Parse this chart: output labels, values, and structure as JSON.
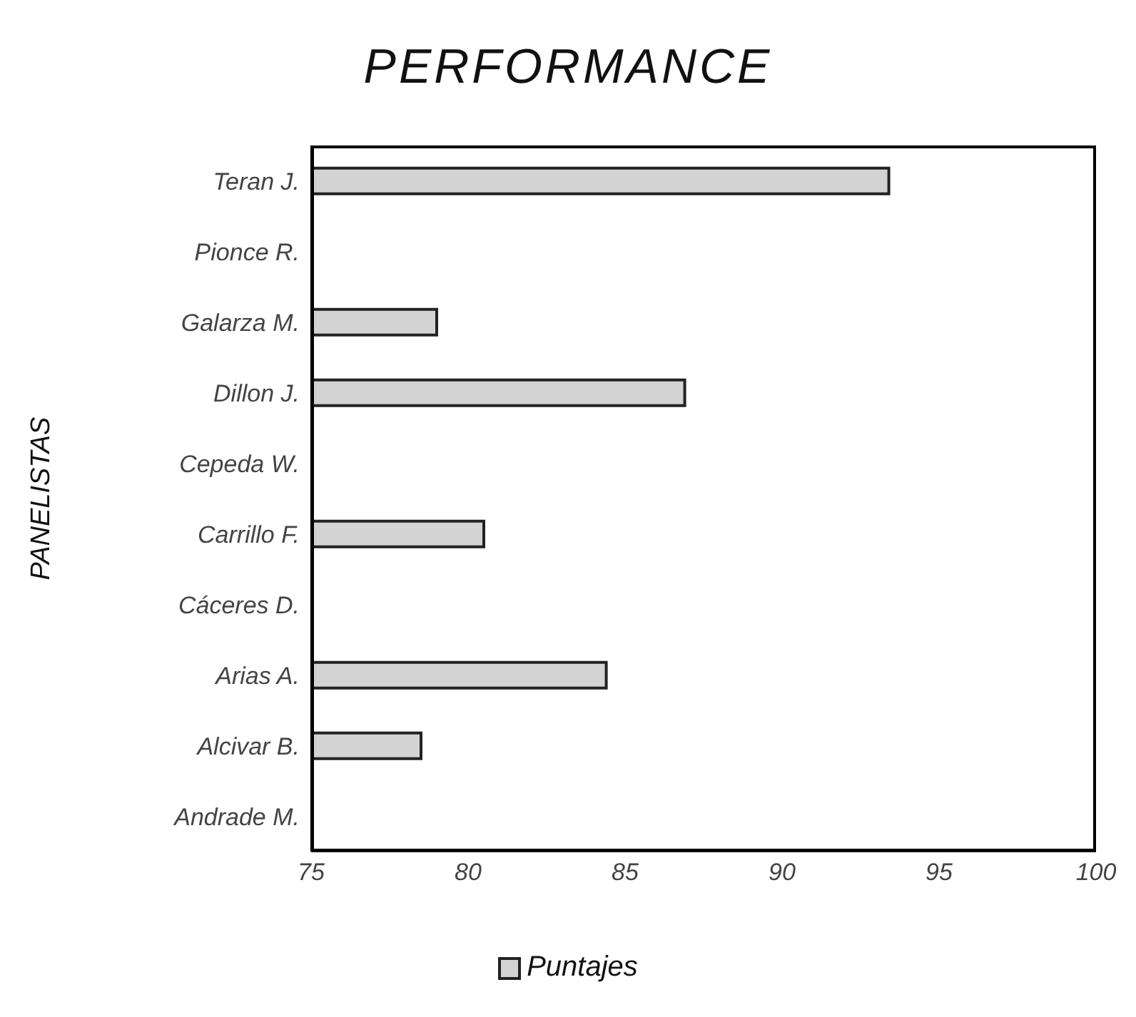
{
  "chart_data": {
    "type": "bar",
    "orientation": "horizontal",
    "title": "PERFORMANCE",
    "ylabel": "PANELISTAS",
    "categories": [
      "Teran J.",
      "Pionce R.",
      "Galarza M.",
      "Dillon J.",
      "Cepeda W.",
      "Carrillo F.",
      "Cáceres D.",
      "Arias A.",
      "Alcivar B.",
      "Andrade M."
    ],
    "series": [
      {
        "name": "Puntajes",
        "color": "#d3d3d3",
        "values": [
          93.4,
          null,
          79.0,
          86.9,
          null,
          80.5,
          null,
          84.4,
          78.5,
          null
        ]
      }
    ],
    "xlim": [
      75,
      100
    ],
    "xticks": [
      75,
      80,
      85,
      90,
      95,
      100
    ],
    "grid": false,
    "legend": "bottom"
  }
}
